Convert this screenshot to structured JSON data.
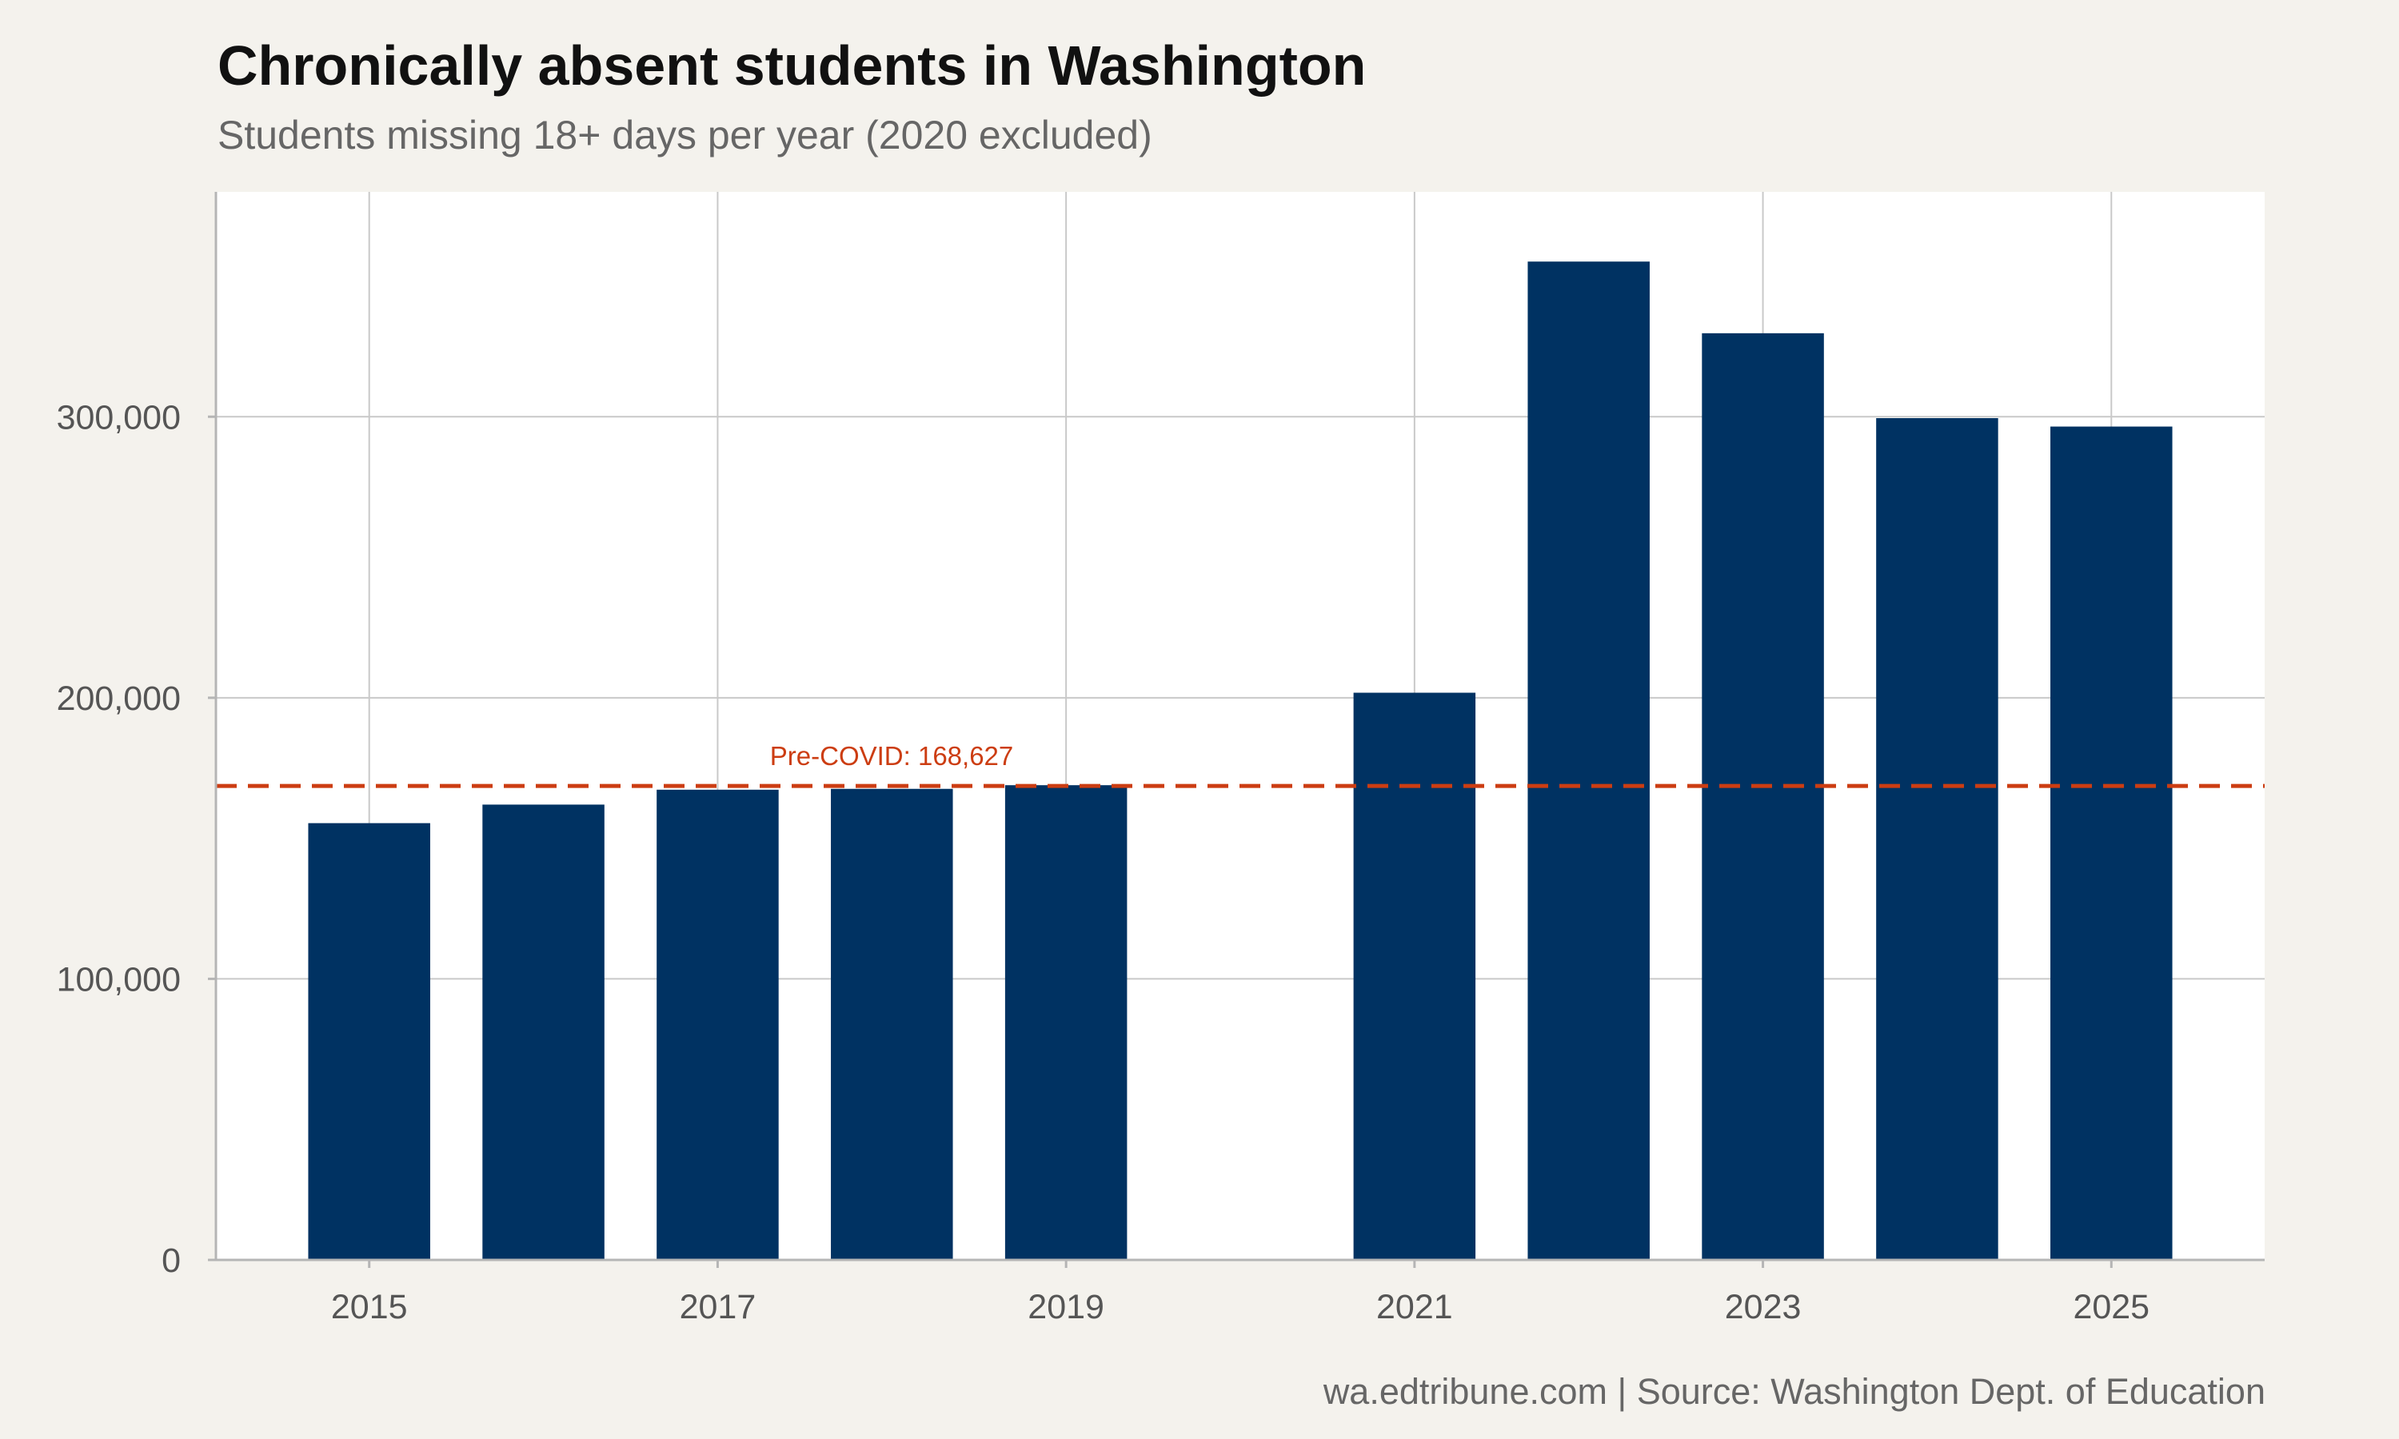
{
  "title": "Chronically absent students in Washington",
  "subtitle": "Students missing 18+ days per year (2020 excluded)",
  "caption": "wa.edtribune.com | Source: Washington Dept. of Education",
  "colors": {
    "bar": "#003262",
    "reference": "#cc3d12",
    "grid": "#c9c9c9",
    "panel": "#ffffff",
    "background": "#f4f2ed"
  },
  "chart_data": {
    "type": "bar",
    "categories": [
      2015,
      2016,
      2017,
      2018,
      2019,
      2021,
      2022,
      2023,
      2024,
      2025
    ],
    "values": [
      155400,
      162000,
      167300,
      167600,
      168900,
      201800,
      355200,
      329700,
      299500,
      296500
    ],
    "xlim": [
      2014.12,
      2025.88
    ],
    "ylim": [
      0,
      380000
    ],
    "x_ticks": [
      2015,
      2017,
      2019,
      2021,
      2023,
      2025
    ],
    "x_tick_labels": [
      "2015",
      "2017",
      "2019",
      "2021",
      "2023",
      "2025"
    ],
    "y_ticks": [
      0,
      100000,
      200000,
      300000
    ],
    "y_tick_labels": [
      "0",
      "100,000",
      "200,000",
      "300,000"
    ],
    "bar_width": 0.7,
    "grid": true,
    "reference_line": {
      "value": 168627,
      "label": "Pre-COVID: 168,627",
      "label_x": 2017.3,
      "style": "dashed"
    }
  }
}
